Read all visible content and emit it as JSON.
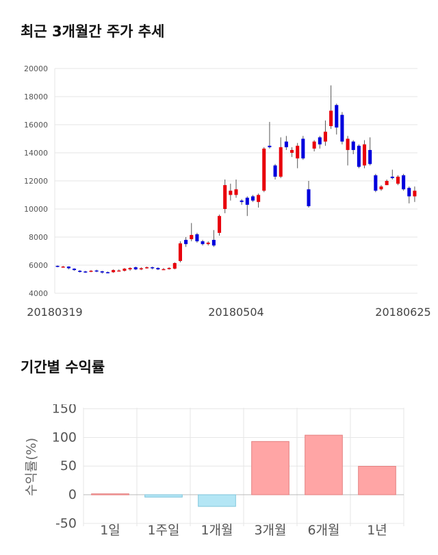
{
  "sections": {
    "price_title": "최근 3개월간 주가 추세",
    "return_title": "기간별 수익률"
  },
  "chart_data": [
    {
      "type": "candlestick",
      "title": "최근 3개월간 주가 추세",
      "ylim": [
        4000,
        20000
      ],
      "y_ticks": [
        4000,
        6000,
        8000,
        10000,
        12000,
        14000,
        16000,
        18000,
        20000
      ],
      "x_labels": [
        "20180319",
        "20180504",
        "20180625"
      ],
      "grid": true,
      "colors": {
        "up": "#e8000b",
        "down": "#0000dd",
        "wick": "#555555"
      },
      "candles": [
        [
          5950,
          5900,
          5980,
          5850
        ],
        [
          5880,
          5900,
          5950,
          5820
        ],
        [
          5900,
          5780,
          5920,
          5700
        ],
        [
          5750,
          5650,
          5780,
          5600
        ],
        [
          5600,
          5520,
          5650,
          5480
        ],
        [
          5550,
          5500,
          5600,
          5450
        ],
        [
          5550,
          5600,
          5650,
          5500
        ],
        [
          5620,
          5550,
          5680,
          5500
        ],
        [
          5560,
          5480,
          5600,
          5400
        ],
        [
          5500,
          5480,
          5550,
          5420
        ],
        [
          5500,
          5650,
          5700,
          5450
        ],
        [
          5600,
          5620,
          5700,
          5550
        ],
        [
          5600,
          5750,
          5800,
          5550
        ],
        [
          5700,
          5800,
          5850,
          5600
        ],
        [
          5850,
          5700,
          5900,
          5650
        ],
        [
          5700,
          5780,
          5850,
          5650
        ],
        [
          5800,
          5850,
          5900,
          5750
        ],
        [
          5850,
          5800,
          5900,
          5700
        ],
        [
          5800,
          5700,
          5850,
          5650
        ],
        [
          5700,
          5720,
          5800,
          5650
        ],
        [
          5720,
          5800,
          5850,
          5680
        ],
        [
          5750,
          6150,
          6200,
          5700
        ],
        [
          6300,
          7550,
          7700,
          6200
        ],
        [
          7800,
          7500,
          8000,
          7300
        ],
        [
          7850,
          8150,
          9000,
          7700
        ],
        [
          8200,
          7700,
          8300,
          7600
        ],
        [
          7700,
          7500,
          7800,
          7400
        ],
        [
          7500,
          7600,
          7700,
          7400
        ],
        [
          7800,
          7400,
          8500,
          7300
        ],
        [
          8300,
          9500,
          9600,
          8100
        ],
        [
          10000,
          11700,
          12100,
          9700
        ],
        [
          11000,
          11300,
          11800,
          10600
        ],
        [
          11000,
          11400,
          12100,
          10800
        ],
        [
          10600,
          10500,
          10700,
          10300
        ],
        [
          10800,
          10300,
          10900,
          9500
        ],
        [
          10900,
          10600,
          11000,
          10500
        ],
        [
          10500,
          11000,
          11100,
          10100
        ],
        [
          11300,
          14300,
          14400,
          11200
        ],
        [
          14500,
          14400,
          16200,
          14300
        ],
        [
          13100,
          12300,
          13200,
          12100
        ],
        [
          12300,
          14400,
          15100,
          12200
        ],
        [
          14800,
          14400,
          15200,
          14200
        ],
        [
          14000,
          14200,
          14400,
          13700
        ],
        [
          13600,
          14500,
          14700,
          12900
        ],
        [
          15000,
          13600,
          15200,
          13500
        ],
        [
          11400,
          10200,
          12000,
          10100
        ],
        [
          14300,
          14800,
          14900,
          14100
        ],
        [
          15100,
          14600,
          15200,
          14300
        ],
        [
          14800,
          15500,
          16300,
          14500
        ],
        [
          15900,
          17000,
          18800,
          15700
        ],
        [
          17400,
          15800,
          17500,
          15300
        ],
        [
          16700,
          14800,
          16900,
          14600
        ],
        [
          14200,
          15000,
          15200,
          13100
        ],
        [
          14800,
          14200,
          14900,
          13900
        ],
        [
          14500,
          13000,
          14600,
          12900
        ],
        [
          13100,
          14600,
          14900,
          12900
        ],
        [
          14200,
          13200,
          15100,
          13100
        ],
        [
          12400,
          11300,
          12500,
          11200
        ],
        [
          11400,
          11600,
          11700,
          11300
        ],
        [
          11700,
          12000,
          12100,
          11700
        ],
        [
          12300,
          12200,
          12800,
          12100
        ],
        [
          11800,
          12300,
          12400,
          11700
        ],
        [
          12400,
          11400,
          12500,
          11300
        ],
        [
          11500,
          10900,
          11600,
          10400
        ],
        [
          10900,
          11300,
          11600,
          10500
        ]
      ]
    },
    {
      "type": "bar",
      "categories": [
        "1일",
        "1주일",
        "1개월",
        "3개월",
        "6개월",
        "1년"
      ],
      "values": [
        1.6,
        -4.2,
        -20.4,
        93.0,
        104.0,
        49.7
      ],
      "ylabel": "수익률(%)",
      "ylim": [
        -55,
        152
      ],
      "y_ticks": [
        -50,
        0,
        50,
        100,
        150
      ],
      "grid": true,
      "colors": {
        "positive_fill": "#ffa5a5",
        "positive_stroke": "#e37f7f",
        "negative_fill": "#b4e6f5",
        "negative_stroke": "#7fc6dc"
      }
    }
  ]
}
